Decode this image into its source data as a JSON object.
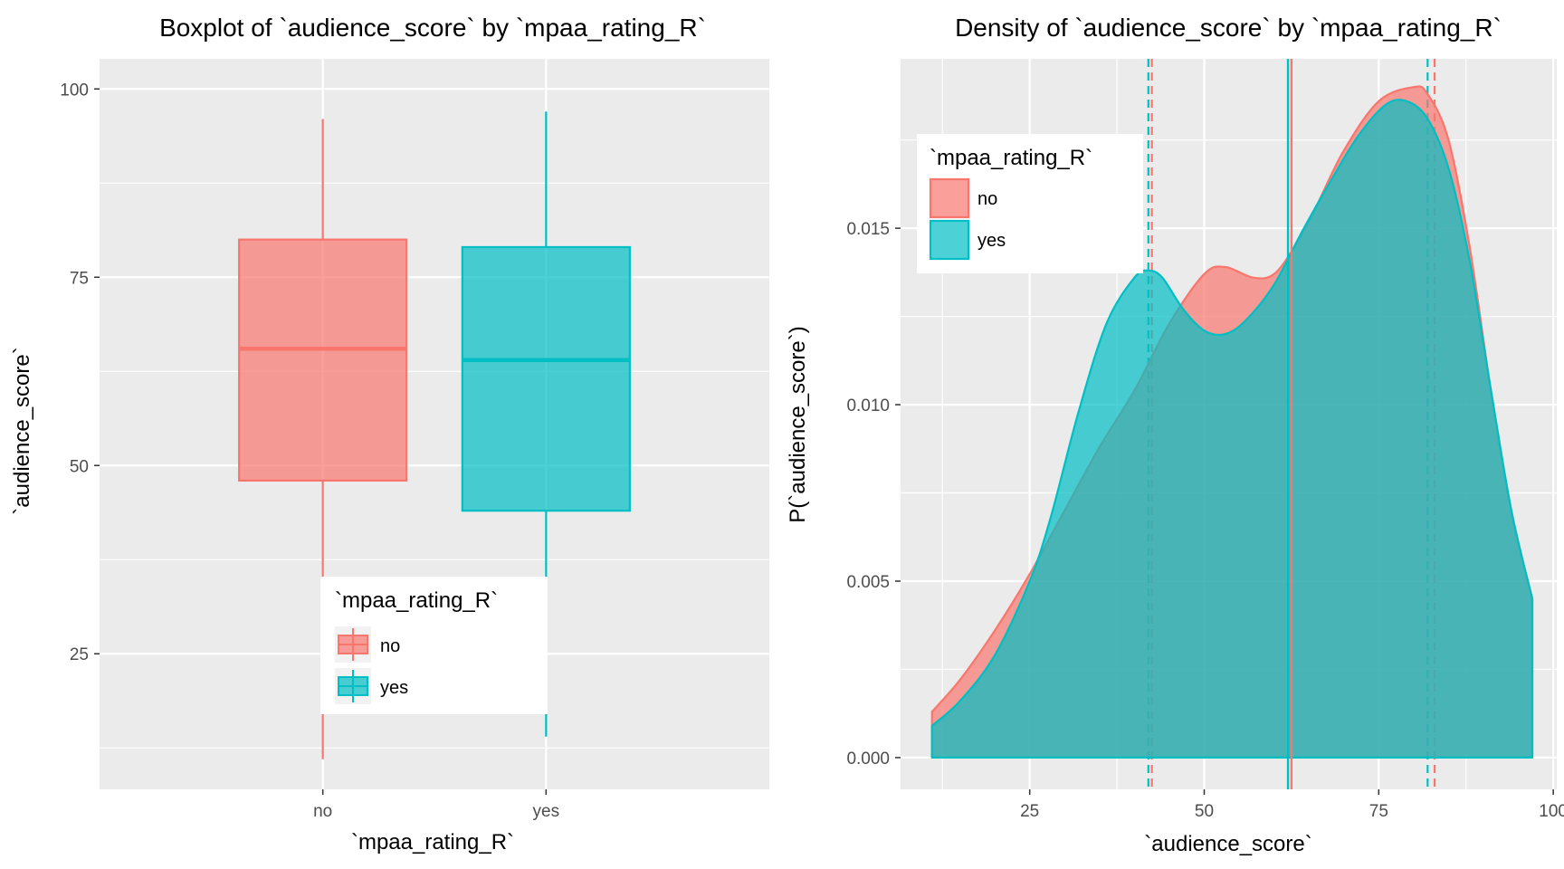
{
  "colors": {
    "no": "#F8766D",
    "yes": "#00BFC4",
    "panel_bg": "#EBEBEB",
    "grid": "#FFFFFF",
    "overlap": "#6E9F9E"
  },
  "chart_data": [
    {
      "type": "box",
      "title": "Boxplot of `audience_score` by `mpaa_rating_R`",
      "xlabel": "`mpaa_rating_R`",
      "ylabel": "`audience_score`",
      "categories": [
        "no",
        "yes"
      ],
      "ylim": [
        7,
        104
      ],
      "y_ticks": [
        25,
        50,
        75,
        100
      ],
      "y_tick_labels": [
        "25",
        "50",
        "75",
        "100"
      ],
      "grid": true,
      "boxes": [
        {
          "name": "no",
          "min": 11,
          "q1": 48,
          "median": 65.5,
          "q3": 80,
          "max": 96
        },
        {
          "name": "yes",
          "min": 14,
          "q1": 44,
          "median": 64,
          "q3": 79,
          "max": 97
        }
      ],
      "legend": {
        "title": "`mpaa_rating_R`",
        "entries": [
          "no",
          "yes"
        ],
        "placement": "bottom-center inside"
      }
    },
    {
      "type": "area",
      "title": "Density of `audience_score` by `mpaa_rating_R`",
      "xlabel": "`audience_score`",
      "ylabel": "P(`audience_score`)",
      "xlim": [
        6.5,
        100.5
      ],
      "ylim": [
        -0.0009,
        0.0198
      ],
      "x_ticks": [
        25,
        50,
        75,
        100
      ],
      "x_tick_labels": [
        "25",
        "50",
        "75",
        "100"
      ],
      "y_ticks": [
        0,
        0.005,
        0.01,
        0.015
      ],
      "y_tick_labels": [
        "0.000",
        "0.005",
        "0.010",
        "0.015"
      ],
      "grid": true,
      "series": [
        {
          "name": "no",
          "x": [
            11,
            15,
            20,
            25,
            30,
            35,
            40,
            45,
            50,
            53,
            57,
            60,
            63,
            66,
            70,
            75,
            80,
            82,
            85,
            88,
            91,
            94,
            97
          ],
          "y": [
            0.0013,
            0.0022,
            0.0036,
            0.0052,
            0.007,
            0.0088,
            0.0104,
            0.0123,
            0.0137,
            0.0139,
            0.0136,
            0.0137,
            0.0145,
            0.0156,
            0.0172,
            0.0186,
            0.019,
            0.0188,
            0.0175,
            0.0145,
            0.0105,
            0.007,
            0.0045
          ],
          "mean": 62.5,
          "quartiles": [
            42.5,
            83
          ]
        },
        {
          "name": "yes",
          "x": [
            11,
            15,
            20,
            25,
            28,
            32,
            36,
            40,
            42,
            44,
            47,
            50,
            53,
            56,
            60,
            64,
            68,
            72,
            76,
            79,
            82,
            85,
            88,
            91,
            94,
            97
          ],
          "y": [
            0.0009,
            0.0016,
            0.0029,
            0.005,
            0.0068,
            0.0098,
            0.0123,
            0.0136,
            0.0138,
            0.0136,
            0.0127,
            0.0121,
            0.012,
            0.0124,
            0.0134,
            0.0149,
            0.0163,
            0.0176,
            0.0185,
            0.0186,
            0.0181,
            0.0167,
            0.0141,
            0.0105,
            0.007,
            0.0045
          ],
          "mean": 62,
          "quartiles": [
            42,
            82
          ]
        }
      ],
      "legend": {
        "title": "`mpaa_rating_R`",
        "entries": [
          "no",
          "yes"
        ],
        "placement": "top-left inside"
      }
    }
  ]
}
